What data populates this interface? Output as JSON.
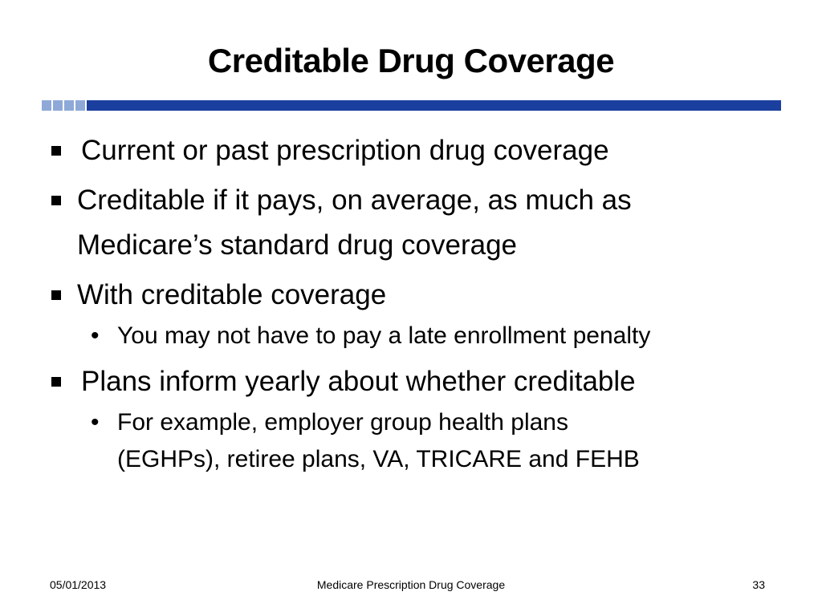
{
  "slide": {
    "title": "Creditable Drug Coverage",
    "bullets": [
      {
        "text": "Current or past prescription drug coverage"
      },
      {
        "text": "Creditable if it pays, on average, as much as",
        "text2": "Medicare’s standard drug coverage"
      },
      {
        "text": "With creditable coverage",
        "sub": [
          "You may not have to pay a late enrollment penalty"
        ]
      },
      {
        "text": "Plans inform yearly about whether creditable",
        "sub": [
          "For example, employer group health plans",
          "(EGHPs), retiree plans, VA, TRICARE and FEHB"
        ]
      }
    ]
  },
  "footer": {
    "date": "05/01/2013",
    "center": "Medicare Prescription Drug Coverage",
    "page": "33"
  },
  "colors": {
    "divider_main": "#1b3f9f",
    "divider_light": "#8ea9d8"
  }
}
